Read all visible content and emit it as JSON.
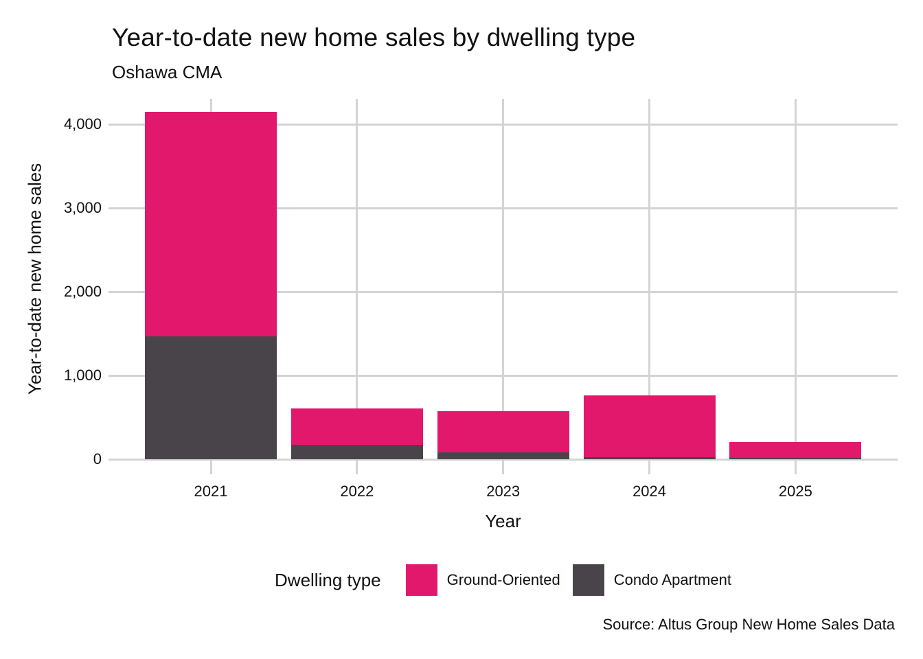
{
  "chart": {
    "title": "Year-to-date new home sales by dwelling type",
    "subtitle": "Oshawa CMA",
    "x_axis_title": "Year",
    "y_axis_title": "Year-to-date new home sales",
    "legend_title": "Dwelling type",
    "source": "Source: Altus Group New Home Sales Data"
  },
  "chart_data": {
    "type": "bar",
    "stacked": true,
    "title": "Year-to-date new home sales by dwelling type",
    "subtitle": "Oshawa CMA",
    "xlabel": "Year",
    "ylabel": "Year-to-date new home sales",
    "categories": [
      "2021",
      "2022",
      "2023",
      "2024",
      "2025"
    ],
    "series": [
      {
        "name": "Condo Apartment",
        "color": "#484449",
        "values": [
          1470,
          170,
          80,
          25,
          15
        ]
      },
      {
        "name": "Ground-Oriented",
        "color": "#E2186C",
        "values": [
          2680,
          440,
          495,
          735,
          190
        ]
      }
    ],
    "stack_order_bottom_to_top": [
      "Condo Apartment",
      "Ground-Oriented"
    ],
    "legend_order": [
      "Ground-Oriented",
      "Condo Apartment"
    ],
    "totals": [
      4150,
      610,
      575,
      760,
      205
    ],
    "ylim": [
      0,
      4300
    ],
    "yticks": [
      0,
      1000,
      2000,
      3000,
      4000
    ],
    "ytick_labels": [
      "0",
      "1,000",
      "2,000",
      "3,000",
      "4,000"
    ],
    "grid": true,
    "legend_position": "bottom",
    "legend_title": "Dwelling type",
    "source": "Source: Altus Group New Home Sales Data"
  },
  "colors": {
    "ground_oriented": "#E2186C",
    "condo_apartment": "#484449",
    "gridline": "#D4D4D4",
    "text": "#111111",
    "background": "#FFFFFF"
  }
}
